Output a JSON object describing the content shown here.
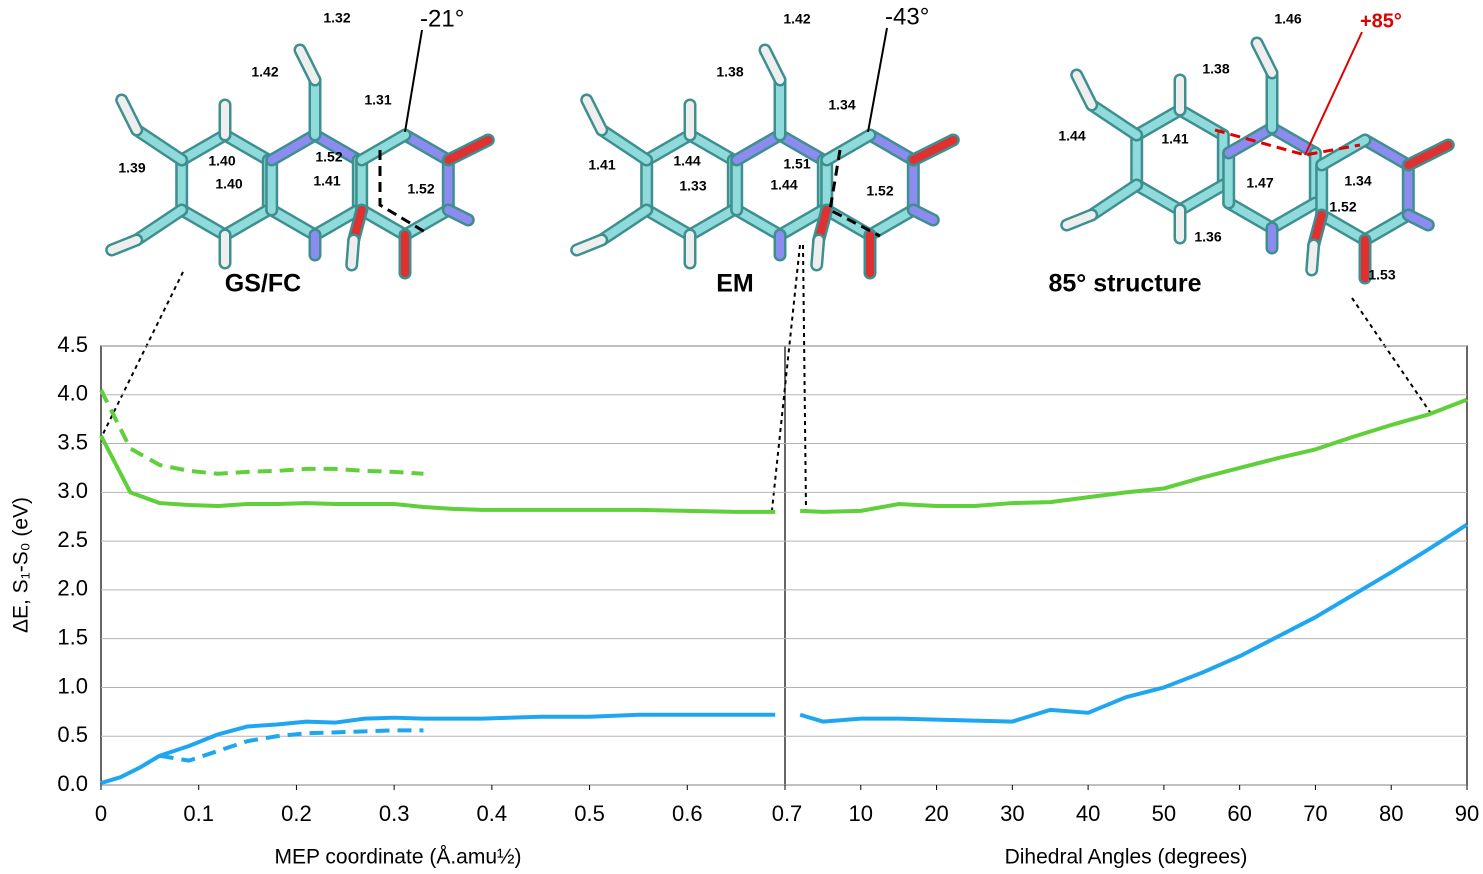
{
  "structures": [
    {
      "label": "GS/FC",
      "angle": "-21°",
      "bond_lengths": [
        "1.32",
        "1.42",
        "1.31",
        "1.40",
        "1.52",
        "1.39",
        "1.41",
        "1.40",
        "1.52"
      ]
    },
    {
      "label": "EM",
      "angle": "-43°",
      "bond_lengths": [
        "1.42",
        "1.38",
        "1.34",
        "1.41",
        "1.44",
        "1.51",
        "1.52",
        "1.33",
        "1.44"
      ]
    },
    {
      "label": "85° structure",
      "angle": "+85°",
      "bond_lengths": [
        "1.46",
        "1.38",
        "1.44",
        "1.41",
        "1.47",
        "1.34",
        "1.52",
        "1.36",
        "1.53"
      ]
    }
  ],
  "chart_data": [
    {
      "type": "line",
      "ylabel": "ΔE, S₁-S₀ (eV)",
      "xlabel": "MEP coordinate (Å.amu½)",
      "xlim": [
        0,
        0.7
      ],
      "xticks": [
        0,
        0.1,
        0.2,
        0.3,
        0.4,
        0.5,
        0.6,
        0.7
      ],
      "ylim": [
        0,
        4.5
      ],
      "yticks": [
        {
          "value": 0,
          "label": "0.0"
        },
        0.5,
        {
          "value": 1,
          "label": "1.0"
        },
        1.5,
        {
          "value": 2,
          "label": "2.0"
        },
        2.5,
        {
          "value": 3,
          "label": "3.0"
        },
        3.5,
        {
          "value": 4,
          "label": "4.0"
        },
        4.5
      ],
      "grid": true,
      "series": [
        {
          "color": "#5fcf3a",
          "dashed": false,
          "x": [
            0,
            0.03,
            0.06,
            0.09,
            0.12,
            0.15,
            0.18,
            0.21,
            0.24,
            0.27,
            0.3,
            0.33,
            0.36,
            0.39,
            0.45,
            0.5,
            0.55,
            0.6,
            0.65,
            0.69
          ],
          "values": [
            3.58,
            3.0,
            2.89,
            2.87,
            2.86,
            2.88,
            2.88,
            2.89,
            2.88,
            2.88,
            2.88,
            2.85,
            2.83,
            2.82,
            2.82,
            2.82,
            2.82,
            2.81,
            2.8,
            2.8
          ]
        },
        {
          "color": "#5fcf3a",
          "dashed": true,
          "x": [
            0,
            0.03,
            0.06,
            0.09,
            0.12,
            0.15,
            0.18,
            0.21,
            0.24,
            0.27,
            0.3,
            0.33
          ],
          "values": [
            4.05,
            3.45,
            3.28,
            3.22,
            3.19,
            3.21,
            3.22,
            3.24,
            3.24,
            3.22,
            3.21,
            3.19
          ]
        },
        {
          "color": "#1ea7f0",
          "dashed": false,
          "x": [
            0,
            0.02,
            0.04,
            0.06,
            0.09,
            0.12,
            0.15,
            0.18,
            0.21,
            0.24,
            0.27,
            0.3,
            0.33,
            0.36,
            0.39,
            0.45,
            0.5,
            0.55,
            0.6,
            0.65,
            0.69
          ],
          "values": [
            0.02,
            0.08,
            0.18,
            0.3,
            0.4,
            0.52,
            0.6,
            0.62,
            0.65,
            0.64,
            0.68,
            0.69,
            0.68,
            0.68,
            0.68,
            0.7,
            0.7,
            0.72,
            0.72,
            0.72,
            0.72
          ]
        },
        {
          "color": "#1ea7f0",
          "dashed": true,
          "x": [
            0.06,
            0.09,
            0.12,
            0.15,
            0.18,
            0.21,
            0.24,
            0.27,
            0.3,
            0.33
          ],
          "values": [
            0.3,
            0.25,
            0.35,
            0.45,
            0.5,
            0.53,
            0.54,
            0.55,
            0.56,
            0.56
          ]
        }
      ]
    },
    {
      "type": "line",
      "xlabel": "Dihedral Angles (degrees)",
      "xlim": [
        0,
        90
      ],
      "xticks": [
        10,
        20,
        30,
        40,
        50,
        60,
        70,
        80,
        90
      ],
      "series": [
        {
          "color": "#5fcf3a",
          "dashed": false,
          "x": [
            2,
            5,
            10,
            15,
            20,
            25,
            30,
            35,
            40,
            45,
            50,
            55,
            60,
            65,
            70,
            75,
            80,
            85,
            90
          ],
          "values": [
            2.81,
            2.8,
            2.81,
            2.88,
            2.86,
            2.86,
            2.89,
            2.9,
            2.95,
            3.0,
            3.04,
            3.15,
            3.25,
            3.35,
            3.44,
            3.57,
            3.69,
            3.8,
            3.95
          ]
        },
        {
          "color": "#1ea7f0",
          "dashed": false,
          "x": [
            2,
            5,
            10,
            15,
            20,
            25,
            30,
            35,
            40,
            45,
            50,
            55,
            60,
            65,
            70,
            75,
            80,
            85,
            90
          ],
          "values": [
            0.72,
            0.65,
            0.68,
            0.68,
            0.67,
            0.66,
            0.65,
            0.77,
            0.74,
            0.9,
            1.0,
            1.15,
            1.32,
            1.52,
            1.72,
            1.95,
            2.18,
            2.42,
            2.67
          ]
        }
      ]
    }
  ]
}
